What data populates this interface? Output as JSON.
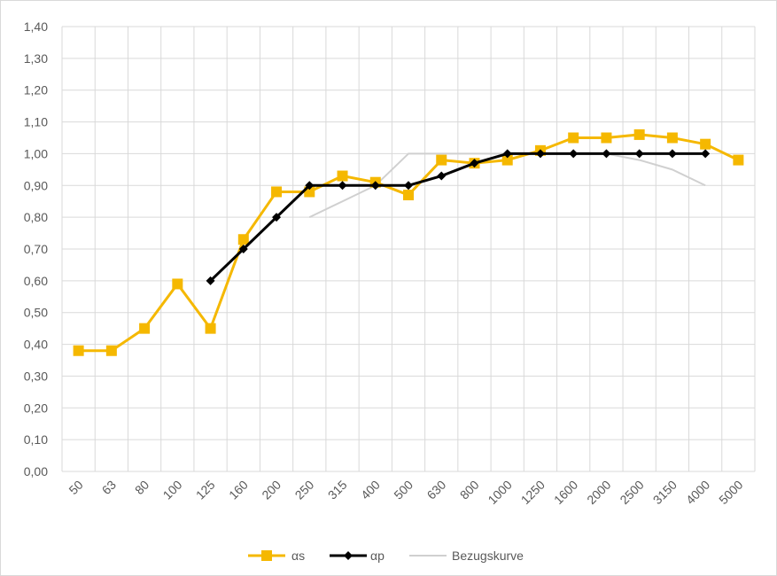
{
  "chart_data": {
    "type": "line",
    "title": "",
    "xlabel": "",
    "ylabel": "",
    "categories": [
      "50",
      "63",
      "80",
      "100",
      "125",
      "160",
      "200",
      "250",
      "315",
      "400",
      "500",
      "630",
      "800",
      "1000",
      "1250",
      "1600",
      "2000",
      "2500",
      "3150",
      "4000",
      "5000"
    ],
    "yticks": [
      "0,00",
      "0,10",
      "0,20",
      "0,30",
      "0,40",
      "0,50",
      "0,60",
      "0,70",
      "0,80",
      "0,90",
      "1,00",
      "1,10",
      "1,20",
      "1,30",
      "1,40"
    ],
    "ylim": [
      0,
      1.4
    ],
    "grid": true,
    "legend": "bottom",
    "series": [
      {
        "name": "αs",
        "color": "#F5B800",
        "marker": "square",
        "values": [
          0.38,
          0.38,
          0.45,
          0.59,
          0.45,
          0.73,
          0.88,
          0.88,
          0.93,
          0.91,
          0.87,
          0.98,
          0.97,
          0.98,
          1.01,
          1.05,
          1.05,
          1.06,
          1.05,
          1.03,
          0.98
        ]
      },
      {
        "name": "αp",
        "color": "#000000",
        "marker": "diamond",
        "values": [
          null,
          null,
          null,
          null,
          0.6,
          0.7,
          0.8,
          0.9,
          0.9,
          0.9,
          0.9,
          0.93,
          0.97,
          1.0,
          1.0,
          1.0,
          1.0,
          1.0,
          1.0,
          1.0,
          null
        ]
      },
      {
        "name": "Bezugskurve",
        "color": "#D0D0D0",
        "marker": "none",
        "values": [
          null,
          null,
          null,
          null,
          null,
          null,
          null,
          0.8,
          0.85,
          0.9,
          1.0,
          1.0,
          1.0,
          1.0,
          1.0,
          1.0,
          1.0,
          0.98,
          0.95,
          0.9,
          null
        ]
      }
    ]
  }
}
